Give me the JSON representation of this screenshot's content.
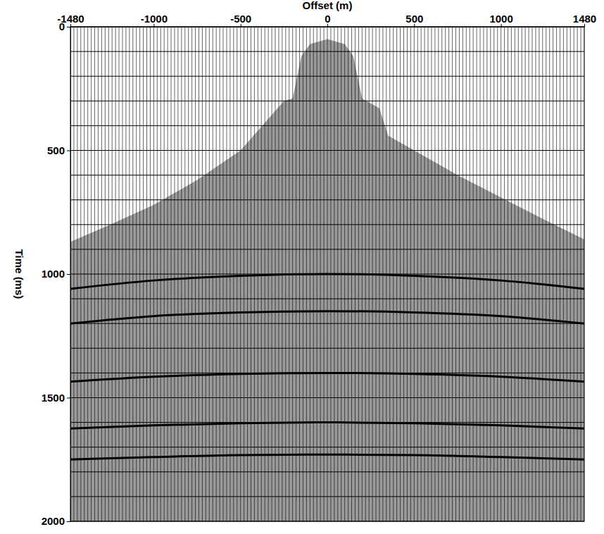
{
  "chart_data": {
    "type": "seismic_gather",
    "x_label": "Offset (m)",
    "y_label": "Time (ms)",
    "xlim": [
      -1480,
      1480
    ],
    "ylim": [
      0,
      2000
    ],
    "xticks": [
      -1480,
      -1000,
      -500,
      0,
      500,
      1000,
      1480
    ],
    "yticks": [
      0,
      500,
      1000,
      1500,
      2000
    ],
    "minor_yticks": [
      100,
      200,
      300,
      400,
      600,
      700,
      800,
      900,
      1100,
      1200,
      1300,
      1400,
      1600,
      1700,
      1800,
      1900
    ],
    "grid": true,
    "traces": [
      -1480,
      -1460,
      -1440,
      -1420,
      -1400,
      -1380,
      -1360,
      -1340,
      -1320,
      -1300,
      -1280,
      -1260,
      -1240,
      -1220,
      -1200,
      -1180,
      -1160,
      -1140,
      -1120,
      -1100,
      -1080,
      -1060,
      -1040,
      -1020,
      -1000,
      -980,
      -960,
      -940,
      -920,
      -900,
      -880,
      -860,
      -840,
      -820,
      -800,
      -780,
      -760,
      -740,
      -720,
      -700,
      -680,
      -660,
      -640,
      -620,
      -600,
      -580,
      -560,
      -540,
      -520,
      -500,
      -480,
      -460,
      -440,
      -420,
      -400,
      -380,
      -360,
      -340,
      -320,
      -300,
      -280,
      -260,
      -240,
      -220,
      -200,
      -180,
      -160,
      -140,
      -120,
      -100,
      -80,
      -60,
      -40,
      -20,
      0,
      20,
      40,
      60,
      80,
      100,
      120,
      140,
      160,
      180,
      200,
      220,
      240,
      260,
      280,
      300,
      320,
      340,
      360,
      380,
      400,
      420,
      440,
      460,
      480,
      500,
      520,
      540,
      560,
      580,
      600,
      620,
      640,
      660,
      680,
      700,
      720,
      740,
      760,
      780,
      800,
      820,
      840,
      860,
      880,
      900,
      920,
      940,
      960,
      980,
      1000,
      1020,
      1040,
      1060,
      1080,
      1100,
      1120,
      1140,
      1160,
      1180,
      1200,
      1220,
      1240,
      1260,
      1280,
      1300,
      1320,
      1340,
      1360,
      1380,
      1400,
      1420,
      1440,
      1460,
      1480
    ],
    "first_break": {
      "color": "#9a9a9a",
      "x": [
        -1480,
        -1250,
        -1000,
        -750,
        -500,
        -400,
        -250,
        -200,
        -150,
        -100,
        0,
        100,
        150,
        200,
        300,
        350,
        500,
        750,
        1000,
        1250,
        1480
      ],
      "values": [
        870,
        800,
        720,
        620,
        500,
        420,
        300,
        290,
        120,
        70,
        50,
        70,
        120,
        290,
        330,
        440,
        500,
        600,
        690,
        780,
        860
      ]
    },
    "x": [
      -1480,
      -1000,
      -500,
      0,
      500,
      1000,
      1480
    ],
    "series": [
      {
        "color": "#000000",
        "values": [
          1060,
          1026,
          1007,
          1000,
          1007,
          1026,
          1060
        ]
      },
      {
        "color": "#000000",
        "values": [
          1200,
          1170,
          1155,
          1150,
          1155,
          1170,
          1200
        ]
      },
      {
        "color": "#000000",
        "values": [
          1435,
          1415,
          1404,
          1400,
          1404,
          1415,
          1435
        ]
      },
      {
        "color": "#000000",
        "values": [
          1625,
          1612,
          1603,
          1600,
          1603,
          1612,
          1625
        ]
      },
      {
        "color": "#000000",
        "values": [
          1750,
          1740,
          1732,
          1730,
          1732,
          1740,
          1750
        ]
      }
    ]
  }
}
